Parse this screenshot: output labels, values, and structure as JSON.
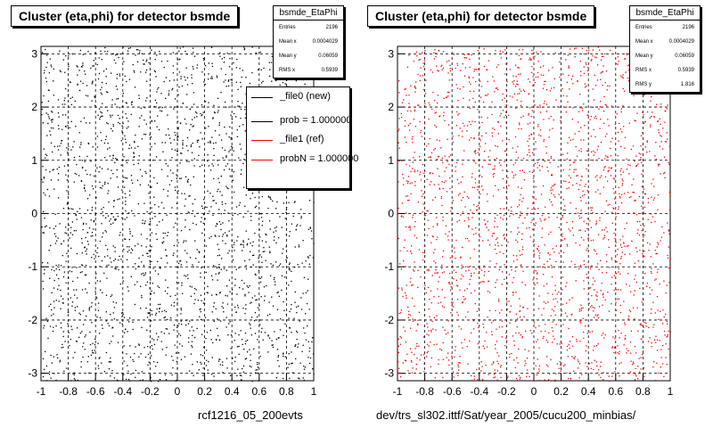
{
  "colors": {
    "black": "#000000",
    "red": "#ff0000",
    "grid": "#000000"
  },
  "left_panel": {
    "title": "Cluster (eta,phi) for detector bsmde",
    "stats": {
      "name": "bsmde_EtaPhi",
      "rows": [
        {
          "label": "Entries",
          "value": "2196"
        },
        {
          "label": "Mean x",
          "value": "0.0004029"
        },
        {
          "label": "Mean y",
          "value": "0.06059"
        },
        {
          "label": "RMS x",
          "value": "0.5939"
        }
      ]
    },
    "legend": [
      {
        "label": "_file0 (new)",
        "color": "#000000"
      },
      {
        "label": "prob = 1.000000",
        "color": "#000000"
      },
      {
        "label": "_file1 (ref)",
        "color": "#ff0000"
      },
      {
        "label": "probN = 1.000000",
        "color": "#ff0000"
      }
    ],
    "caption": "rcf1216_05_200evts"
  },
  "right_panel": {
    "title": "Cluster (eta,phi) for detector bsmde",
    "stats": {
      "name": "bsmde_EtaPhi",
      "rows": [
        {
          "label": "Entries",
          "value": "2196"
        },
        {
          "label": "Mean x",
          "value": "0.0004029"
        },
        {
          "label": "Mean y",
          "value": "0.06059"
        },
        {
          "label": "RMS x",
          "value": "0.5939"
        },
        {
          "label": "RMS y",
          "value": "1.816"
        }
      ]
    },
    "caption": "dev/trs_sl302.ittf/Sat/year_2005/cucu200_minbias/"
  },
  "chart_data": [
    {
      "type": "scatter",
      "title": "Cluster (eta,phi) for detector bsmde",
      "xlabel": "rcf1216_05_200evts",
      "ylabel": "",
      "xlim": [
        -1,
        1
      ],
      "ylim": [
        -3.14,
        3.14
      ],
      "xticks": [
        "-1",
        "-0.8",
        "-0.6",
        "-0.4",
        "-0.2",
        "0",
        "0.2",
        "0.4",
        "0.6",
        "0.8",
        "1"
      ],
      "yticks": [
        "-3",
        "-2",
        "-1",
        "0",
        "1",
        "2",
        "3"
      ],
      "grid": true,
      "legend_position": "top-right",
      "series": [
        {
          "name": "_file0 (new)",
          "color": "#000000",
          "n_points": 2196,
          "distribution": "uniform"
        },
        {
          "name": "_file1 (ref)",
          "color": "#ff0000",
          "n_points": 0,
          "distribution": "uniform"
        }
      ],
      "stats": {
        "entries": 2196,
        "mean_x": 0.0004029,
        "mean_y": 0.06059,
        "rms_x": 0.5939
      }
    },
    {
      "type": "scatter",
      "title": "Cluster (eta,phi) for detector bsmde",
      "xlabel": "dev/trs_sl302.ittf/Sat/year_2005/cucu200_minbias/",
      "ylabel": "",
      "xlim": [
        -1,
        1
      ],
      "ylim": [
        -3.14,
        3.14
      ],
      "xticks": [
        "-1",
        "-0.8",
        "-0.6",
        "-0.4",
        "-0.2",
        "0",
        "0.2",
        "0.4",
        "0.6",
        "0.8",
        "1"
      ],
      "yticks": [
        "-3",
        "-2",
        "-1",
        "0",
        "1",
        "2",
        "3"
      ],
      "grid": true,
      "series": [
        {
          "name": "_file1 (ref)",
          "color": "#ff0000",
          "n_points": 2196,
          "distribution": "uniform"
        }
      ],
      "stats": {
        "entries": 2196,
        "mean_x": 0.0004029,
        "mean_y": 0.06059,
        "rms_x": 0.5939,
        "rms_y": 1.816
      }
    }
  ]
}
